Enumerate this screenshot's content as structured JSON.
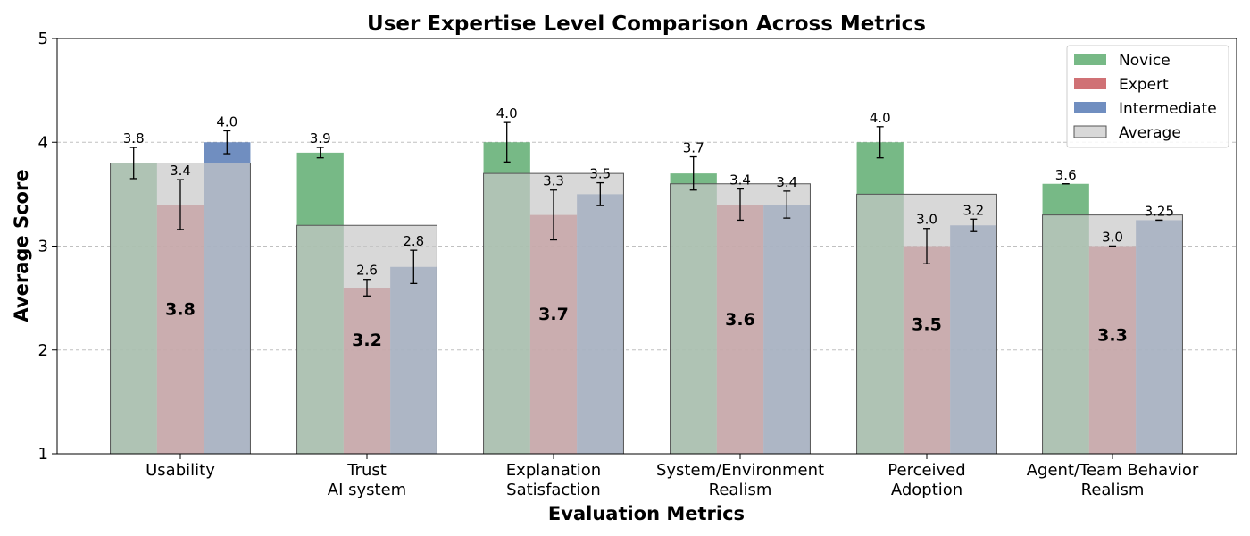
{
  "chart_data": {
    "type": "bar",
    "title": "User Expertise Level Comparison Across Metrics",
    "xlabel": "Evaluation Metrics",
    "ylabel": "Average Score",
    "ylim": [
      1,
      5
    ],
    "yticks": [
      "1",
      "2",
      "3",
      "4",
      "5"
    ],
    "grid": true,
    "legend_position": "top-right",
    "categories": [
      [
        "Usability"
      ],
      [
        "Trust",
        "AI system"
      ],
      [
        "Explanation",
        "Satisfaction"
      ],
      [
        "System/Environment",
        "Realism"
      ],
      [
        "Perceived",
        "Adoption"
      ],
      [
        "Agent/Team Behavior",
        "Realism"
      ]
    ],
    "series": [
      {
        "name": "Novice",
        "color": "#55a868",
        "values": [
          3.8,
          3.9,
          4.0,
          3.7,
          4.0,
          3.6
        ],
        "labels": [
          "3.8",
          "3.9",
          "4.0",
          "3.7",
          "4.0",
          "3.6"
        ],
        "errors": [
          0.15,
          0.05,
          0.19,
          0.16,
          0.15,
          0.0
        ]
      },
      {
        "name": "Expert",
        "color": "#c44e52",
        "values": [
          3.4,
          2.6,
          3.3,
          3.4,
          3.0,
          3.0
        ],
        "labels": [
          "3.4",
          "2.6",
          "3.3",
          "3.4",
          "3.0",
          "3.0"
        ],
        "errors": [
          0.24,
          0.08,
          0.24,
          0.15,
          0.17,
          0.0
        ]
      },
      {
        "name": "Intermediate",
        "color": "#4c72b0",
        "values": [
          4.0,
          2.8,
          3.5,
          3.4,
          3.2,
          3.25
        ],
        "labels": [
          "4.0",
          "2.8",
          "3.5",
          "3.4",
          "3.2",
          "3.25"
        ],
        "errors": [
          0.11,
          0.16,
          0.11,
          0.13,
          0.06,
          0.0
        ]
      }
    ],
    "average": {
      "name": "Average",
      "color": "#c8c8c8",
      "values": [
        3.8,
        3.2,
        3.7,
        3.6,
        3.5,
        3.3
      ],
      "labels": [
        "3.8",
        "3.2",
        "3.7",
        "3.6",
        "3.5",
        "3.3"
      ]
    }
  }
}
